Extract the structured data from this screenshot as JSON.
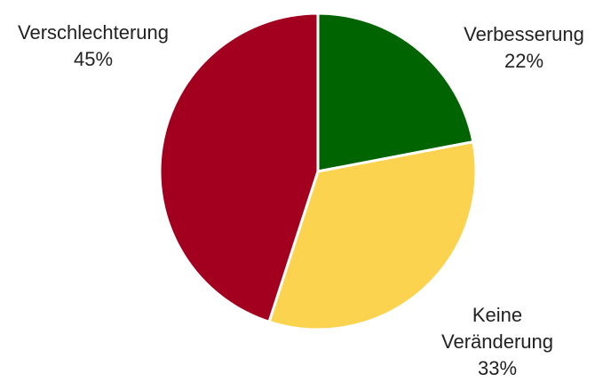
{
  "chart_data": {
    "type": "pie",
    "categories": [
      "Verbesserung",
      "Keine Veränderung",
      "Verschlechterung"
    ],
    "values": [
      22,
      33,
      45
    ],
    "value_labels": [
      "22%",
      "33%",
      "45%"
    ],
    "colors": [
      "#006400",
      "#fcd34f",
      "#a3001f"
    ]
  }
}
